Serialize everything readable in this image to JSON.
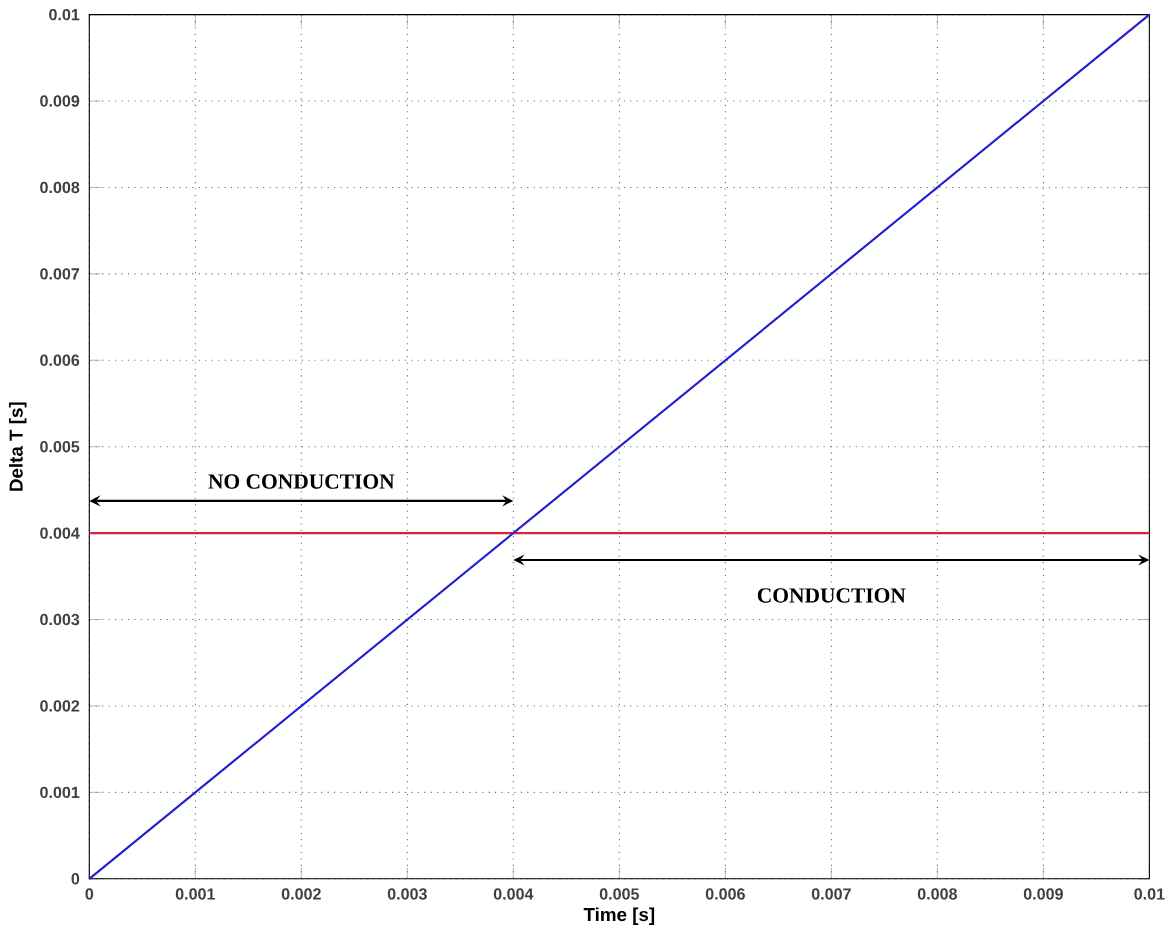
{
  "chart_data": {
    "type": "line",
    "xlabel": "Time [s]",
    "ylabel": "Delta T [s]",
    "x": [
      0,
      0.01
    ],
    "series": [
      {
        "color": "#2020d0",
        "values": [
          0,
          0.01
        ]
      }
    ],
    "xlim": [
      0,
      0.01
    ],
    "ylim": [
      0,
      0.01
    ],
    "xticks": [
      0,
      0.001,
      0.002,
      0.003,
      0.004,
      0.005,
      0.006,
      0.007,
      0.008,
      0.009,
      0.01
    ],
    "yticks": [
      0,
      0.001,
      0.002,
      0.003,
      0.004,
      0.005,
      0.006,
      0.007,
      0.008,
      0.009,
      0.01
    ],
    "ref_lines": [
      {
        "axis": "y",
        "value": 0.004,
        "color": "#e0203a"
      }
    ],
    "annotations": [
      "NO CONDUCTION",
      "CONDUCTION"
    ],
    "grid": true,
    "marker": "none",
    "line_style": "solid"
  }
}
